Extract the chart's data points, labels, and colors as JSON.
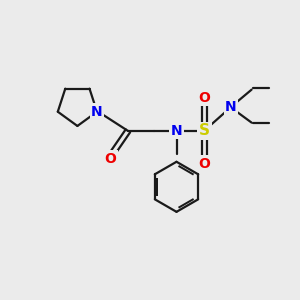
{
  "bg_color": "#ebebeb",
  "bond_color": "#1a1a1a",
  "N_color": "#0000ee",
  "O_color": "#ee0000",
  "S_color": "#cccc00",
  "line_width": 1.6,
  "fig_size": [
    3.0,
    3.0
  ],
  "dpi": 100,
  "xlim": [
    0,
    10
  ],
  "ylim": [
    0,
    10
  ]
}
